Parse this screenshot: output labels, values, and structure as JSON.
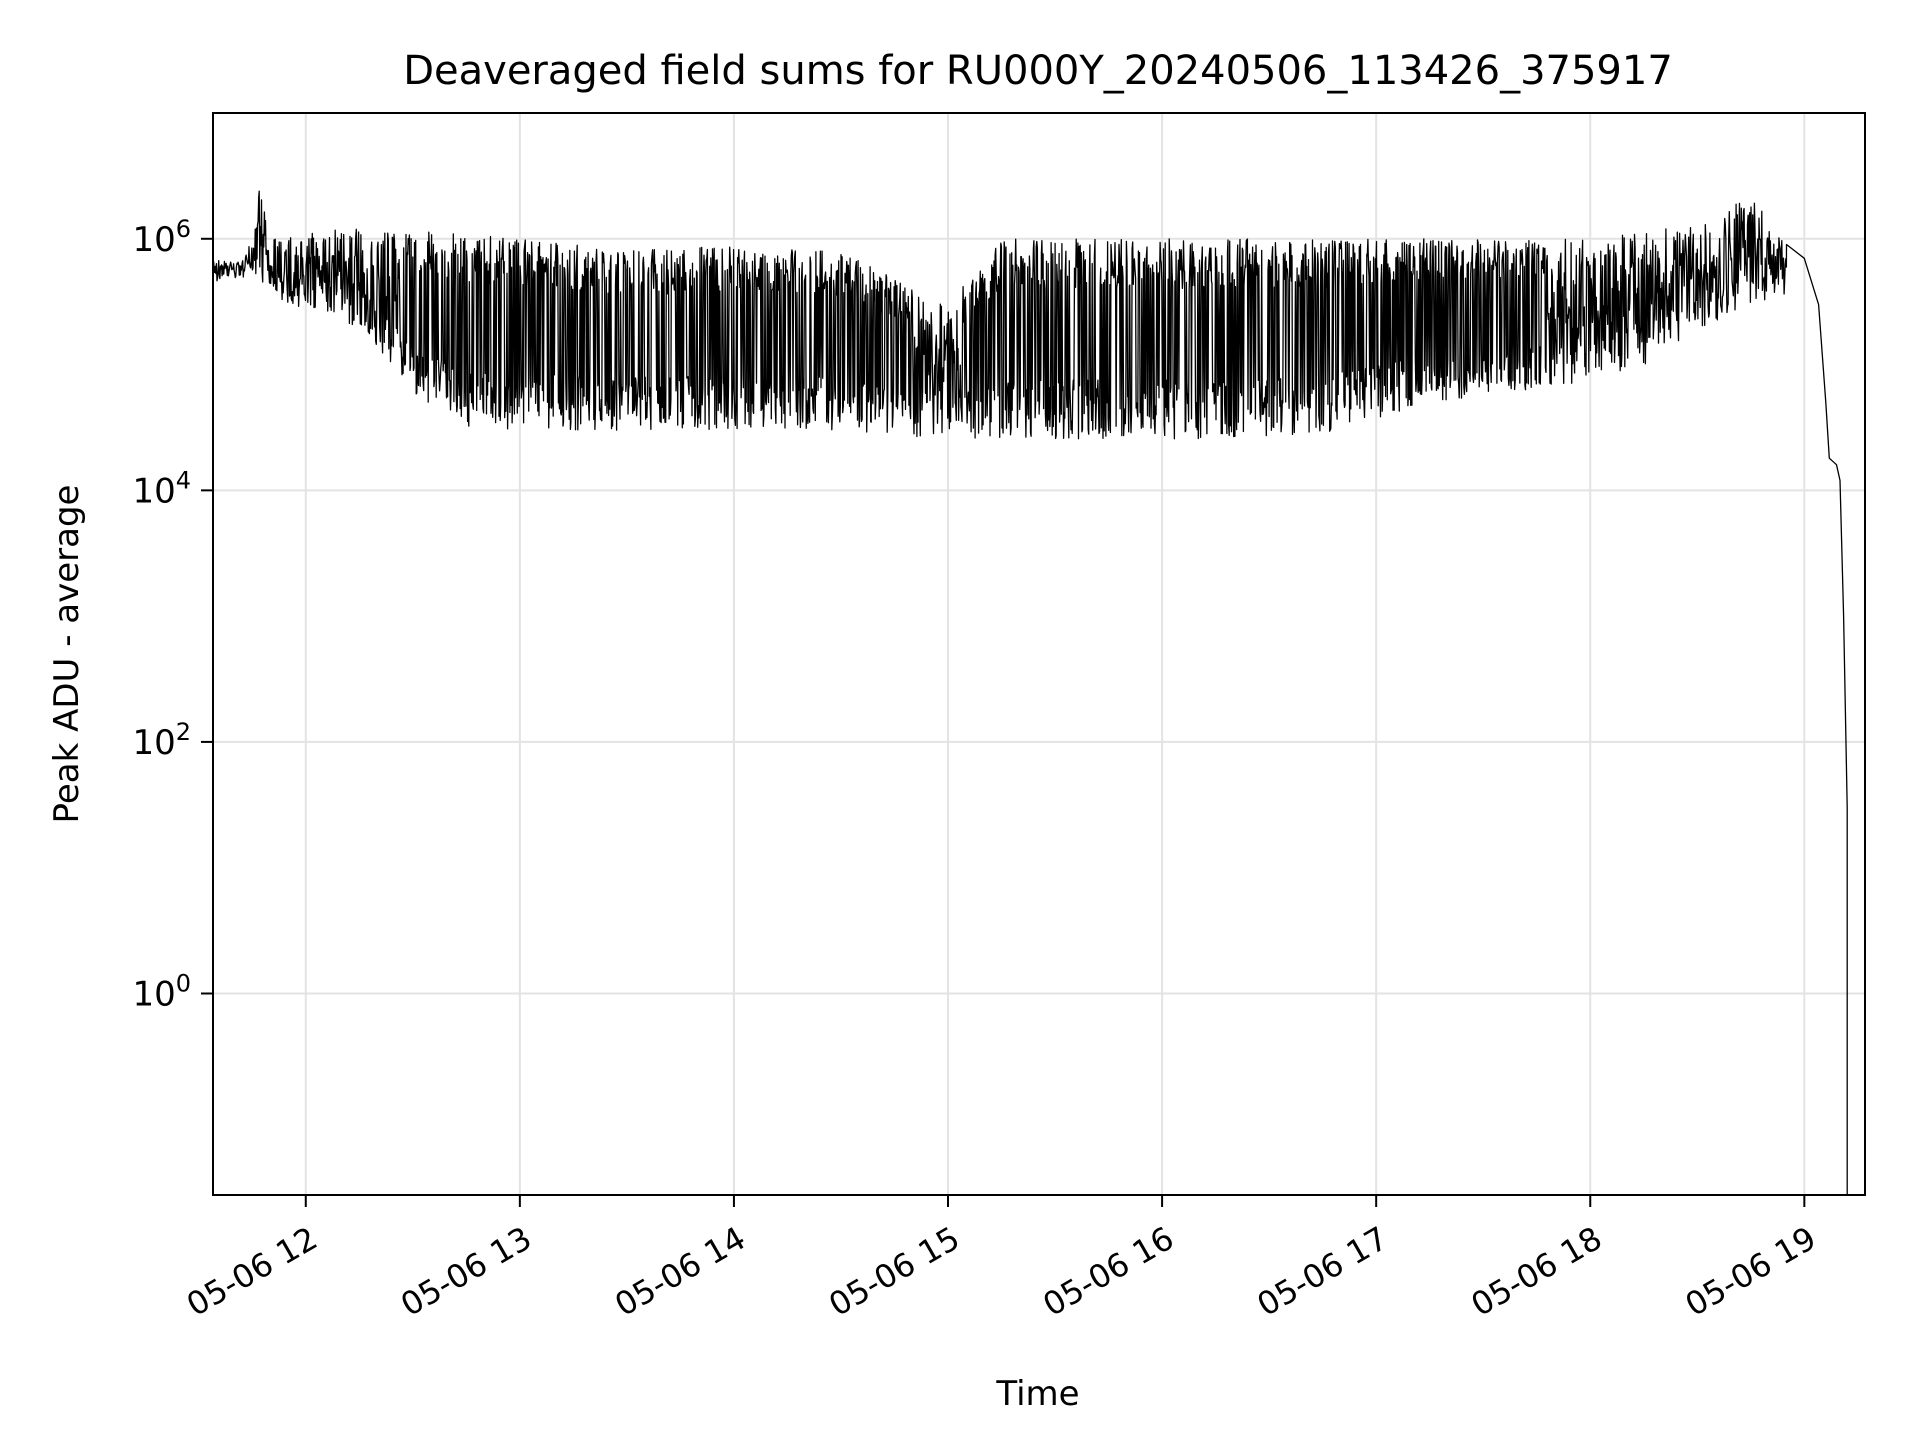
{
  "chart_data": {
    "type": "line",
    "title": "Deaveraged field sums for RU000Y_20240506_113426_375917",
    "xlabel": "Time",
    "ylabel": "Peak ADU - average",
    "yscale": "log",
    "grid": true,
    "legend": "none",
    "line_color": "#000000",
    "xlim": [
      "2024-05-06T11:34",
      "2024-05-06T19:17"
    ],
    "ylim": [
      0.025,
      10000000
    ],
    "x_ticks": [
      {
        "t": "2024-05-06T12:00",
        "label": "05-06 12"
      },
      {
        "t": "2024-05-06T13:00",
        "label": "05-06 13"
      },
      {
        "t": "2024-05-06T14:00",
        "label": "05-06 14"
      },
      {
        "t": "2024-05-06T15:00",
        "label": "05-06 15"
      },
      {
        "t": "2024-05-06T16:00",
        "label": "05-06 16"
      },
      {
        "t": "2024-05-06T17:00",
        "label": "05-06 17"
      },
      {
        "t": "2024-05-06T18:00",
        "label": "05-06 18"
      },
      {
        "t": "2024-05-06T19:00",
        "label": "05-06 19"
      }
    ],
    "y_ticks": [
      {
        "value": 1,
        "base": "10",
        "exp": "0"
      },
      {
        "value": 100,
        "base": "10",
        "exp": "2"
      },
      {
        "value": 10000,
        "base": "10",
        "exp": "4"
      },
      {
        "value": 1000000,
        "base": "10",
        "exp": "6"
      }
    ],
    "series": [
      {
        "envelope_upper": [
          {
            "x": "2024-05-06T11:34",
            "y": 700000
          },
          {
            "x": "2024-05-06T11:42",
            "y": 650000
          },
          {
            "x": "2024-05-06T11:45",
            "y": 1000000
          },
          {
            "x": "2024-05-06T11:47",
            "y": 3500000
          },
          {
            "x": "2024-05-06T11:50",
            "y": 1000000
          },
          {
            "x": "2024-05-06T12:10",
            "y": 1200000
          },
          {
            "x": "2024-05-06T12:30",
            "y": 1200000
          },
          {
            "x": "2024-05-06T13:00",
            "y": 1000000
          },
          {
            "x": "2024-05-06T13:30",
            "y": 800000
          },
          {
            "x": "2024-05-06T14:00",
            "y": 900000
          },
          {
            "x": "2024-05-06T14:30",
            "y": 800000
          },
          {
            "x": "2024-05-06T15:00",
            "y": 300000
          },
          {
            "x": "2024-05-06T15:15",
            "y": 1000000
          },
          {
            "x": "2024-05-06T16:00",
            "y": 1000000
          },
          {
            "x": "2024-05-06T17:00",
            "y": 1000000
          },
          {
            "x": "2024-05-06T18:00",
            "y": 1000000
          },
          {
            "x": "2024-05-06T18:30",
            "y": 1300000
          },
          {
            "x": "2024-05-06T18:45",
            "y": 2200000
          },
          {
            "x": "2024-05-06T18:55",
            "y": 900000
          },
          {
            "x": "2024-05-06T19:00",
            "y": 800000
          }
        ],
        "envelope_lower": [
          {
            "x": "2024-05-06T11:34",
            "y": 450000
          },
          {
            "x": "2024-05-06T11:45",
            "y": 500000
          },
          {
            "x": "2024-05-06T11:55",
            "y": 300000
          },
          {
            "x": "2024-05-06T12:15",
            "y": 200000
          },
          {
            "x": "2024-05-06T12:30",
            "y": 60000
          },
          {
            "x": "2024-05-06T12:45",
            "y": 30000
          },
          {
            "x": "2024-05-06T13:30",
            "y": 30000
          },
          {
            "x": "2024-05-06T14:30",
            "y": 30000
          },
          {
            "x": "2024-05-06T15:00",
            "y": 25000
          },
          {
            "x": "2024-05-06T16:00",
            "y": 25000
          },
          {
            "x": "2024-05-06T16:45",
            "y": 28000
          },
          {
            "x": "2024-05-06T17:15",
            "y": 50000
          },
          {
            "x": "2024-05-06T17:45",
            "y": 60000
          },
          {
            "x": "2024-05-06T18:15",
            "y": 100000
          },
          {
            "x": "2024-05-06T18:45",
            "y": 300000
          },
          {
            "x": "2024-05-06T19:00",
            "y": 400000
          }
        ],
        "tail": [
          {
            "x": "2024-05-06T18:55",
            "y": 900000
          },
          {
            "x": "2024-05-06T19:00",
            "y": 700000
          },
          {
            "x": "2024-05-06T19:04",
            "y": 300000
          },
          {
            "x": "2024-05-06T19:06",
            "y": 50000
          },
          {
            "x": "2024-05-06T19:07",
            "y": 18000
          },
          {
            "x": "2024-05-06T19:09",
            "y": 16000
          },
          {
            "x": "2024-05-06T19:10",
            "y": 12000
          },
          {
            "x": "2024-05-06T19:11",
            "y": 1000
          },
          {
            "x": "2024-05-06T19:12",
            "y": 30
          },
          {
            "x": "2024-05-06T19:12",
            "y": 0.025
          }
        ]
      }
    ]
  }
}
